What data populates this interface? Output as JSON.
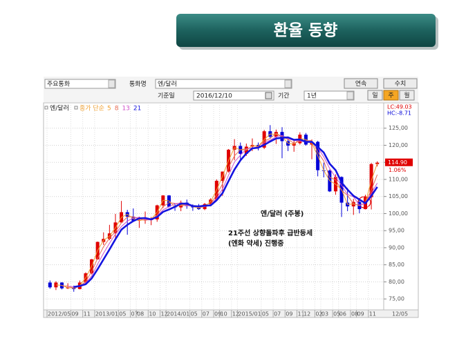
{
  "header": {
    "title": "환율 동향"
  },
  "toolbar": {
    "currency_group": "주요통화",
    "currency_label": "통화명",
    "currency": "엔/달러",
    "continuous": "연속",
    "numeric": "수치",
    "base_date_label": "기준일",
    "base_date": "2016/12/10",
    "period_label": "기간",
    "period": "1년",
    "daily": "일",
    "weekly": "주",
    "monthly": "월"
  },
  "chart_data": {
    "type": "candlestick",
    "legend_title": "엔/달러",
    "ma_label": "종가 단순",
    "categories": [
      "2012/05",
      null,
      null,
      null,
      "09",
      null,
      "11",
      null,
      "2013/01",
      null,
      null,
      null,
      "05",
      null,
      "07",
      "08",
      null,
      "10",
      null,
      "12",
      "2014/01",
      null,
      null,
      null,
      "05",
      null,
      "07",
      null,
      "09",
      "10",
      null,
      "12",
      "2015/01",
      null,
      null,
      null,
      "05",
      null,
      "07",
      null,
      "09",
      null,
      "11",
      "12",
      null,
      "02",
      "03",
      null,
      "05",
      "06",
      null,
      "08",
      "09",
      null,
      "11",
      null
    ],
    "open": [
      79.8,
      78.4,
      79.8,
      78.1,
      78.4,
      77.9,
      79.8,
      82.5,
      86.6,
      91.7,
      92.6,
      94.2,
      97.4,
      100.4,
      99.1,
      97.9,
      98.1,
      98.2,
      98.3,
      102.4,
      105.3,
      102.0,
      101.8,
      103.2,
      102.2,
      101.8,
      101.3,
      102.8,
      104.1,
      109.6,
      112.3,
      118.7,
      119.8,
      117.5,
      119.6,
      120.1,
      119.3,
      124.1,
      122.5,
      123.9,
      121.2,
      119.9,
      120.6,
      123.1,
      120.2,
      121.0,
      112.7,
      112.6,
      106.5,
      110.7,
      103.2,
      102.1,
      103.4,
      101.3,
      104.8,
      114.5
    ],
    "high": [
      80.4,
      80.2,
      79.9,
      79.6,
      78.9,
      80.4,
      82.8,
      86.7,
      91.8,
      94.5,
      96.7,
      99.9,
      103.7,
      101.1,
      101.5,
      99.1,
      100.6,
      99.0,
      102.6,
      105.4,
      105.4,
      102.8,
      103.8,
      104.1,
      102.7,
      102.8,
      103.1,
      104.5,
      110.0,
      112.3,
      118.9,
      121.8,
      120.8,
      120.5,
      122.0,
      120.8,
      124.5,
      125.9,
      124.6,
      125.3,
      121.8,
      121.5,
      123.8,
      123.6,
      121.7,
      121.3,
      114.9,
      112.9,
      111.5,
      110.9,
      107.5,
      104.3,
      104.1,
      105.5,
      114.8,
      115.3
    ],
    "low": [
      78.0,
      77.6,
      77.8,
      77.9,
      77.1,
      77.8,
      79.1,
      82.2,
      86.5,
      90.8,
      92.2,
      92.6,
      97.4,
      93.8,
      97.6,
      95.8,
      97.0,
      96.6,
      97.6,
      101.6,
      101.8,
      100.8,
      100.7,
      101.4,
      100.8,
      101.1,
      101.0,
      102.3,
      104.0,
      105.2,
      112.0,
      115.6,
      115.9,
      116.9,
      118.3,
      118.5,
      118.9,
      121.9,
      120.4,
      116.2,
      118.3,
      118.1,
      120.2,
      119.9,
      115.9,
      110.9,
      110.6,
      106.3,
      105.5,
      99.0,
      100.7,
      99.6,
      100.1,
      101.2,
      101.2,
      113.8
    ],
    "close": [
      78.4,
      79.8,
      78.1,
      78.4,
      77.9,
      79.8,
      82.5,
      86.6,
      91.7,
      92.6,
      94.2,
      97.4,
      100.4,
      99.1,
      97.9,
      98.1,
      98.2,
      98.3,
      102.4,
      105.3,
      102.0,
      101.8,
      103.2,
      102.2,
      101.8,
      101.3,
      102.8,
      104.1,
      109.6,
      112.3,
      118.7,
      119.8,
      117.5,
      119.6,
      120.1,
      119.3,
      124.1,
      122.5,
      123.9,
      121.2,
      119.9,
      120.6,
      123.1,
      120.2,
      121.0,
      112.7,
      112.6,
      106.5,
      110.7,
      103.2,
      102.1,
      103.4,
      101.3,
      104.8,
      114.5,
      114.9
    ],
    "up_color": "#e00000",
    "down_color": "#0000d8",
    "series": [
      {
        "name": "5",
        "color": "#f0a030",
        "values": [
          null,
          79.1,
          79.0,
          78.3,
          78.2,
          78.9,
          81.2,
          84.6,
          89.2,
          92.2,
          93.4,
          95.8,
          98.9,
          99.8,
          98.5,
          98.0,
          98.2,
          98.3,
          100.4,
          103.9,
          103.7,
          101.9,
          102.5,
          102.7,
          102.0,
          101.6,
          102.1,
          103.5,
          106.9,
          111.0,
          115.5,
          119.3,
          118.7,
          118.6,
          119.9,
          119.7,
          121.7,
          123.3,
          123.2,
          122.6,
          120.6,
          120.3,
          121.9,
          121.7,
          120.6,
          116.9,
          112.7,
          109.6,
          108.6,
          107.0,
          102.7,
          102.8,
          102.4,
          103.1,
          109.7,
          114.7
        ]
      },
      {
        "name": "8",
        "color": "#e86a50",
        "values": [
          null,
          null,
          78.8,
          78.8,
          78.1,
          78.7,
          80.1,
          83.0,
          86.9,
          90.3,
          92.8,
          94.7,
          97.3,
          99.0,
          99.1,
          98.4,
          98.1,
          98.2,
          99.6,
          102.0,
          103.2,
          103.0,
          102.3,
          102.4,
          102.4,
          101.8,
          102.0,
          102.7,
          105.5,
          108.7,
          113.5,
          116.9,
          118.7,
          119.0,
          119.1,
          119.7,
          121.2,
          122.0,
          123.5,
          122.5,
          121.7,
          120.6,
          121.2,
          121.3,
          121.4,
          118.0,
          115.4,
          110.6,
          109.9,
          106.8,
          105.3,
          102.9,
          102.3,
          103.2,
          106.9,
          111.4
        ]
      },
      {
        "name": "13",
        "color": "#d050c8",
        "values": [
          null,
          null,
          null,
          78.7,
          78.6,
          78.6,
          79.7,
          81.7,
          85.2,
          88.4,
          91.3,
          94.0,
          96.2,
          97.8,
          98.7,
          98.9,
          98.3,
          98.1,
          99.3,
          101.1,
          102.0,
          102.9,
          103.1,
          102.3,
          102.3,
          102.1,
          102.0,
          102.5,
          104.5,
          107.2,
          111.2,
          115.1,
          117.1,
          118.9,
          119.3,
          119.1,
          120.8,
          121.5,
          122.5,
          122.9,
          121.9,
          121.4,
          121.2,
          121.0,
          121.2,
          119.3,
          116.6,
          113.2,
          110.6,
          108.3,
          105.6,
          104.9,
          102.5,
          102.9,
          106.0,
          108.9
        ]
      },
      {
        "name": "21",
        "color": "#1414e0",
        "values": [
          null,
          null,
          null,
          null,
          78.5,
          78.8,
          79.3,
          81.0,
          83.7,
          86.6,
          89.5,
          92.5,
          95.3,
          96.7,
          97.8,
          98.6,
          98.7,
          98.3,
          99.0,
          100.5,
          101.2,
          102.0,
          102.9,
          102.9,
          102.2,
          102.1,
          102.3,
          102.4,
          103.9,
          106.0,
          109.5,
          112.9,
          115.6,
          117.6,
          119.1,
          119.3,
          120.1,
          121.1,
          122.0,
          122.2,
          122.3,
          121.6,
          121.7,
          121.0,
          121.0,
          119.5,
          117.9,
          114.6,
          112.7,
          109.1,
          107.0,
          105.2,
          104.1,
          103.0,
          105.2,
          107.8
        ]
      }
    ],
    "ylim": [
      72,
      130
    ],
    "yticks": [
      {
        "value": 75,
        "label": "75,00"
      },
      {
        "value": 80,
        "label": "80,00"
      },
      {
        "value": 85,
        "label": "85,00"
      },
      {
        "value": 90,
        "label": "90,00"
      },
      {
        "value": 95,
        "label": "95,00"
      },
      {
        "value": 100,
        "label": "100,00"
      },
      {
        "value": 105,
        "label": "105,00"
      },
      {
        "value": 110,
        "label": "110,00"
      },
      {
        "value": 115,
        "label": "115,00"
      },
      {
        "value": 120,
        "label": "120,00"
      },
      {
        "value": 125,
        "label": "125,00"
      }
    ],
    "grid": true,
    "last_price": {
      "value": 114.9,
      "label": "114.90"
    },
    "change_label": "1.06%",
    "lc_label": "LC:49.03",
    "hc_label": "HC:-8.71",
    "x_end_label": "12/05",
    "annotations": [
      "엔/달러 (주봉)",
      "21주선 상향돌파후 급반등세",
      "(엔화 약세) 진행중"
    ]
  }
}
